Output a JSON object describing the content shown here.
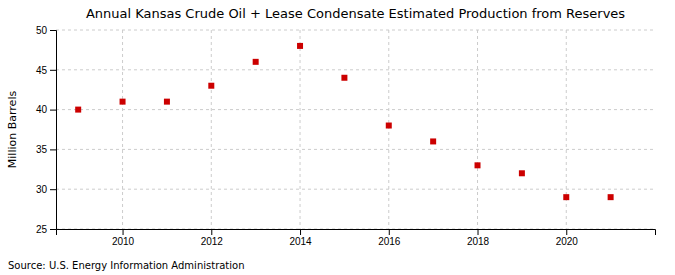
{
  "chart_data": {
    "type": "scatter",
    "title": "Annual Kansas Crude Oil + Lease Condensate Estimated Production from Reserves",
    "ylabel": "Million Barrels",
    "source": "Source: U.S. Energy Information Administration",
    "x": [
      2009,
      2010,
      2011,
      2012,
      2013,
      2014,
      2015,
      2016,
      2017,
      2018,
      2019,
      2020,
      2021
    ],
    "values": [
      40.0,
      41.0,
      41.0,
      43.0,
      46.0,
      48.0,
      44.0,
      38.0,
      36.0,
      33.0,
      32.0,
      29.0,
      29.0
    ],
    "xlim": [
      2008.5,
      2022.0
    ],
    "xticks": [
      2010,
      2012,
      2014,
      2016,
      2018,
      2020
    ],
    "ylim": [
      25,
      50
    ],
    "yticks": [
      25,
      30,
      35,
      40,
      45,
      50
    ],
    "color": "#cc0000",
    "marker": "square",
    "grid": true
  }
}
